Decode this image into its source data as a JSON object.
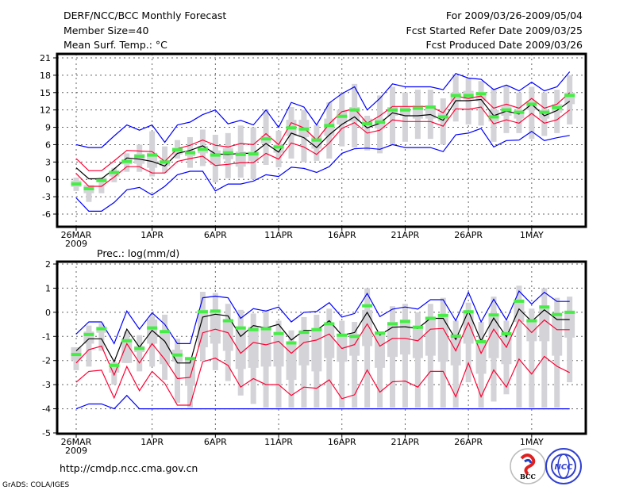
{
  "header": {
    "title": "DERF/NCC/BCC Monthly Forecast",
    "member_size": "Member Size=40",
    "variable": "Mean Surf. Temp.: °C",
    "period": "For 2009/03/26-2009/05/04",
    "started": "Fcst Started Refer Date 2009/03/25",
    "produced": "Fcst Produced Date 2009/03/26"
  },
  "footer": {
    "url": "http://cmdp.ncc.cma.gov.cn",
    "credit": "GrADS: COLA/IGES",
    "logo_bcc": "BCC",
    "logo_ncc": "NCC"
  },
  "colors": {
    "max_min": "#0000ff",
    "spread": "#ff0033",
    "mean": "#000000",
    "median": "#44ee44",
    "range": "#d4d4d8"
  },
  "chart_data": [
    {
      "type": "line",
      "title": "Mean Surf. Temp.: °C",
      "x_start": "2009-03-26",
      "x_ticks": [
        {
          "day": 0,
          "label": "26MAR",
          "sub": "2009"
        },
        {
          "day": 6,
          "label": "1APR"
        },
        {
          "day": 11,
          "label": "6APR"
        },
        {
          "day": 16,
          "label": "11APR"
        },
        {
          "day": 21,
          "label": "16APR"
        },
        {
          "day": 26,
          "label": "21APR"
        },
        {
          "day": 31,
          "label": "26APR"
        },
        {
          "day": 36,
          "label": "1MAY"
        }
      ],
      "y_ticks": [
        21,
        18,
        15,
        12,
        9,
        6,
        3,
        0,
        -3,
        -6
      ],
      "ylim": [
        -7.8,
        22
      ],
      "grid": true,
      "series": [
        {
          "name": "max",
          "color": "blue",
          "values": [
            6,
            5.5,
            5.5,
            7.5,
            9.4,
            8.5,
            9.4,
            6.4,
            9.4,
            9.9,
            11.2,
            12,
            9.6,
            10.2,
            9.4,
            12,
            9,
            13.3,
            12.5,
            9.4,
            13.2,
            14.8,
            16,
            12,
            14,
            16.5,
            16,
            16,
            16,
            15.5,
            18.3,
            17.5,
            17.3,
            15.5,
            16.3,
            15.3,
            16.8,
            15.3,
            16,
            18.6
          ]
        },
        {
          "name": "upper",
          "color": "red",
          "values": [
            3.6,
            1.5,
            1.5,
            3.2,
            5,
            4.9,
            4.8,
            3.1,
            5.3,
            5.9,
            6.8,
            5.9,
            5.6,
            6.2,
            6,
            7.9,
            6,
            9.8,
            8.9,
            6.8,
            9.6,
            11.7,
            12.2,
            9.7,
            11,
            12.6,
            12.6,
            12.6,
            12.6,
            11.5,
            14.4,
            14,
            14.4,
            12.3,
            13,
            12.3,
            14,
            12.3,
            13,
            15
          ]
        },
        {
          "name": "mean",
          "color": "black",
          "values": [
            2,
            0.1,
            0.1,
            1.8,
            3.7,
            3.5,
            3.1,
            2.3,
            4.5,
            5,
            5.8,
            4.4,
            4.3,
            4.5,
            4.5,
            6.2,
            4.7,
            8,
            7.2,
            5.5,
            7.7,
            9.5,
            10.8,
            8.9,
            9.7,
            11.5,
            11,
            11,
            11.2,
            10.2,
            13.6,
            13.6,
            13.8,
            11,
            11.8,
            11.3,
            13,
            11,
            11.9,
            13.5
          ]
        },
        {
          "name": "lower",
          "color": "red",
          "values": [
            1,
            -1.2,
            -1.2,
            0.4,
            2.2,
            2.2,
            1.1,
            1.1,
            3.1,
            3.6,
            4,
            2.4,
            2.6,
            2.9,
            2.9,
            4.5,
            3.5,
            6.3,
            5.6,
            4.3,
            6.3,
            8.8,
            9.8,
            8,
            8.5,
            10.3,
            10,
            10,
            10,
            9.2,
            12.2,
            12.1,
            12.5,
            9.6,
            10.3,
            9.7,
            11.4,
            9.7,
            10.3,
            12
          ]
        },
        {
          "name": "min",
          "color": "blue",
          "values": [
            -3.2,
            -5.5,
            -5.5,
            -4,
            -1.8,
            -1.4,
            -2.7,
            -1.2,
            0.8,
            1.4,
            1.4,
            -2,
            -0.8,
            -0.8,
            -0.3,
            0.8,
            0.5,
            2.1,
            1.9,
            1.2,
            2.2,
            4.5,
            5.3,
            5.4,
            5.2,
            6,
            5.5,
            5.5,
            5.5,
            4.8,
            7.7,
            8,
            8.8,
            5.6,
            6.7,
            6.8,
            8.3,
            6.7,
            7.2,
            7.6
          ]
        }
      ],
      "median": [
        -0.8,
        -1.6,
        -0.2,
        1.2,
        3.1,
        4,
        4.2,
        3,
        5.1,
        4.6,
        5.2,
        4.2,
        4.6,
        4.3,
        4.4,
        7,
        5.6,
        8.9,
        8.7,
        6.8,
        9.3,
        10.9,
        12,
        9.6,
        9.9,
        12,
        12,
        12.3,
        12.5,
        10.8,
        14.5,
        14.5,
        14.8,
        10.8,
        12,
        11.6,
        13,
        11.6,
        12.4,
        14.5
      ],
      "range_hi": [
        0.3,
        -1,
        0.4,
        2,
        4.5,
        6,
        8.3,
        5.7,
        6.8,
        7.3,
        8.6,
        7.7,
        8,
        9.3,
        9,
        12,
        8.4,
        12.5,
        12,
        9.4,
        13.3,
        15,
        16.5,
        11,
        14.5,
        16,
        15,
        15.5,
        15.5,
        14,
        18,
        17.5,
        17,
        15.7,
        16.2,
        15,
        16,
        15,
        15.5,
        18
      ],
      "range_lo": [
        -2,
        -3.9,
        -2.4,
        -0.5,
        1.3,
        1.3,
        0.5,
        1.1,
        3.6,
        2,
        2.3,
        -0.5,
        0.2,
        0.3,
        0,
        2.5,
        2.1,
        3.6,
        3,
        3.2,
        3.6,
        5.7,
        5.5,
        5,
        4.5,
        6,
        6.5,
        7,
        7,
        6,
        10,
        9.5,
        9.3,
        6.5,
        8,
        8,
        7,
        7.5,
        8,
        9.5
      ],
      "box_hi": [
        -0.2,
        -1,
        0.3,
        1.5,
        3.5,
        4.4,
        4.6,
        3.3,
        5.5,
        5,
        5.8,
        5,
        5.4,
        4.8,
        4.8,
        7.5,
        6,
        10.3,
        10.3,
        7.5,
        10.5,
        12,
        12.5,
        10.5,
        10.5,
        12.5,
        12.5,
        12.8,
        12.8,
        11.5,
        15,
        15.3,
        15,
        12,
        12.6,
        12,
        13.5,
        12,
        13,
        15
      ],
      "box_lo": [
        -1.3,
        -2.4,
        -0.5,
        0.5,
        2.6,
        2.7,
        2,
        2.3,
        4.3,
        4,
        4.5,
        2.5,
        3.5,
        2.2,
        3.2,
        6.2,
        4.6,
        7.5,
        7.3,
        5.3,
        7.5,
        9.5,
        10,
        9,
        8.8,
        11,
        11,
        10.5,
        10.5,
        10,
        13.5,
        13.8,
        13.5,
        10,
        11,
        10.5,
        12,
        10.5,
        11.5,
        13
      ]
    },
    {
      "type": "line",
      "title": "Prec.: log(mm/d)",
      "x_start": "2009-03-26",
      "x_ticks": [
        {
          "day": 0,
          "label": "26MAR",
          "sub": "2009"
        },
        {
          "day": 6,
          "label": "1APR"
        },
        {
          "day": 11,
          "label": "6APR"
        },
        {
          "day": 16,
          "label": "11APR"
        },
        {
          "day": 21,
          "label": "16APR"
        },
        {
          "day": 26,
          "label": "21APR"
        },
        {
          "day": 31,
          "label": "26APR"
        },
        {
          "day": 36,
          "label": "1MAY"
        }
      ],
      "y_ticks": [
        2,
        1,
        0,
        -1,
        -2,
        -3,
        -4,
        -5
      ],
      "ylim": [
        -5,
        2
      ],
      "grid": true,
      "series": [
        {
          "name": "max",
          "color": "blue",
          "values": [
            -0.9,
            -0.4,
            -0.4,
            -1.3,
            0.05,
            -0.7,
            -0.02,
            -0.5,
            -1.3,
            -1.3,
            0.6,
            0.67,
            0.6,
            -0.25,
            0.15,
            0.05,
            0.22,
            -0.4,
            0,
            0.03,
            0.4,
            -0.2,
            -0.05,
            0.78,
            -0.18,
            0.13,
            0.22,
            0.13,
            0.52,
            0.52,
            -0.35,
            0.83,
            -0.4,
            0.54,
            -0.32,
            0.88,
            0.34,
            0.83,
            0.45,
            0.45
          ]
        },
        {
          "name": "upper",
          "color": "red",
          "values": [
            -2.1,
            -1.55,
            -1.4,
            -2.6,
            -1.3,
            -2.1,
            -1.3,
            -1.95,
            -2.75,
            -2.7,
            -0.85,
            -0.7,
            -0.85,
            -1.7,
            -1.25,
            -1.35,
            -1.2,
            -1.7,
            -1.25,
            -1.15,
            -0.9,
            -1.5,
            -1.34,
            -0.48,
            -1.4,
            -1.08,
            -1.08,
            -1.18,
            -0.7,
            -0.67,
            -1.6,
            -0.43,
            -1.7,
            -0.7,
            -1.45,
            -0.3,
            -0.84,
            -0.32,
            -0.72,
            -0.72
          ]
        },
        {
          "name": "mean",
          "color": "black",
          "values": [
            -1.6,
            -1.1,
            -1.1,
            -2.05,
            -0.7,
            -1.45,
            -0.75,
            -1.2,
            -2.1,
            -2.1,
            -0.2,
            -0.08,
            -0.15,
            -1,
            -0.55,
            -0.65,
            -0.5,
            -1.15,
            -0.75,
            -0.75,
            -0.35,
            -0.95,
            -0.84,
            0,
            -0.94,
            -0.62,
            -0.6,
            -0.67,
            -0.25,
            -0.25,
            -1.13,
            0.05,
            -1.18,
            -0.24,
            -1.02,
            0.14,
            -0.38,
            0.1,
            -0.3,
            -0.3
          ]
        },
        {
          "name": "lower",
          "color": "red",
          "values": [
            -2.9,
            -2.45,
            -2.4,
            -3.55,
            -2.25,
            -3.25,
            -2.45,
            -2.95,
            -3.85,
            -3.85,
            -2.05,
            -1.9,
            -2.2,
            -3.1,
            -2.75,
            -3,
            -3,
            -3.45,
            -3.1,
            -3.15,
            -2.8,
            -3.58,
            -3.42,
            -2.39,
            -3.31,
            -2.88,
            -2.85,
            -3.1,
            -2.45,
            -2.45,
            -3.5,
            -2.1,
            -3.5,
            -2.39,
            -3.1,
            -1.94,
            -2.56,
            -1.83,
            -2.24,
            -2.5
          ]
        },
        {
          "name": "min",
          "color": "blue",
          "values": [
            -4,
            -3.8,
            -3.8,
            -4,
            -3.45,
            -4,
            -4,
            -4,
            -4,
            -4,
            -4,
            -4,
            -4,
            -4,
            -4,
            -4,
            -4,
            -4,
            -4,
            -4,
            -4,
            -4,
            -4,
            -4,
            -4,
            -4,
            -4,
            -4,
            -4,
            -4,
            -4,
            -4,
            -4,
            -4,
            -4,
            -4,
            -4,
            -4,
            -4,
            -4
          ]
        }
      ],
      "median": [
        -1.75,
        -0.92,
        -0.68,
        -2.2,
        -1.18,
        -1.5,
        -0.65,
        -0.8,
        -1.77,
        -1.92,
        0.02,
        0.05,
        -0.35,
        -0.65,
        -0.72,
        -0.68,
        -0.88,
        -1.27,
        -0.83,
        -0.72,
        -0.48,
        -0.95,
        -1,
        0.27,
        -0.86,
        -0.48,
        -0.38,
        -0.62,
        -0.25,
        -0.13,
        -0.99,
        0.02,
        -1.22,
        -0.11,
        -0.89,
        0.46,
        -0.35,
        0.22,
        -0.09,
        0
      ],
      "range_hi": [
        -1.45,
        -0.55,
        -0.45,
        -2.05,
        -0.8,
        -0.95,
        -0.15,
        -0.1,
        -1.1,
        -1.95,
        0.85,
        0.8,
        0.35,
        0.1,
        -0.05,
        0.1,
        -0.35,
        -0.75,
        -0.2,
        -0.1,
        0.15,
        -0.35,
        -0.4,
        1,
        -0.8,
        0.25,
        0.35,
        0,
        0.35,
        0.6,
        -0.35,
        0.4,
        -0.4,
        0.65,
        -0.35,
        1.1,
        0.15,
        1,
        0.6,
        0.65
      ],
      "range_lo": [
        -2.4,
        -2.25,
        -1.6,
        -3,
        -2.1,
        -2.45,
        -2.25,
        -2.8,
        -3.75,
        -3.95,
        -2,
        -2.4,
        -2.85,
        -3.45,
        -3.8,
        -3.95,
        -3.95,
        -3.95,
        -3.95,
        -3.95,
        -3.95,
        -3.95,
        -3.95,
        -3.95,
        -3.95,
        -3.95,
        -3.95,
        -3.95,
        -3.95,
        -3.95,
        -3.95,
        -2.9,
        -3.95,
        -3.7,
        -3.4,
        -3.95,
        -3.95,
        -3.95,
        -3.95,
        -2.9
      ],
      "box_hi": [
        -1.45,
        -0.8,
        -0.6,
        -2.1,
        -1.1,
        -1.4,
        -0.3,
        -0.8,
        -1.55,
        -1.9,
        0.1,
        0,
        -0.3,
        -0.65,
        -0.6,
        -0.6,
        -0.85,
        -1.25,
        -0.75,
        -0.65,
        -0.45,
        -0.9,
        -0.9,
        0.1,
        -0.85,
        -0.4,
        -0.3,
        -0.55,
        -0.2,
        -0.2,
        -0.9,
        0.05,
        -1.15,
        -0.1,
        -0.85,
        0.5,
        -0.3,
        0.2,
        -0.1,
        0
      ],
      "box_lo": [
        -2,
        -1.3,
        -0.85,
        -2.5,
        -2.1,
        -1.65,
        -1.3,
        -2.15,
        -2.05,
        -3.05,
        -1.45,
        -1.3,
        -1.6,
        -2.35,
        -2.3,
        -2.25,
        -2.25,
        -2.8,
        -2.2,
        -2.45,
        -1.9,
        -2.05,
        -1.8,
        -1.4,
        -2.3,
        -1.85,
        -1.75,
        -1.9,
        -1.8,
        -2.05,
        -2.2,
        -1.3,
        -2.55,
        -1.9,
        -2.15,
        -0.4,
        -1.2,
        -1.2,
        -1.8,
        -1.05
      ]
    }
  ]
}
